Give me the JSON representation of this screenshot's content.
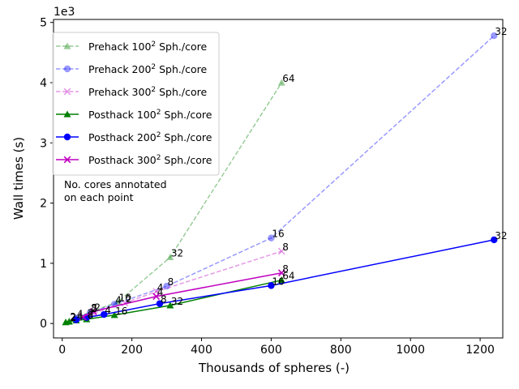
{
  "chart_data": {
    "type": "line",
    "xlabel": "Thousands of spheres (-)",
    "ylabel": "Wall times (s)",
    "y_offset_label": "1e3",
    "xlim": [
      -25,
      1265
    ],
    "ylim": [
      -0.24,
      5.05
    ],
    "x_ticks": [
      0,
      200,
      400,
      600,
      800,
      1000,
      1200
    ],
    "x_tick_labels": [
      "0",
      "200",
      "400",
      "600",
      "800",
      "1000",
      "1200"
    ],
    "y_ticks": [
      0,
      1,
      2,
      3,
      4,
      5
    ],
    "y_tick_labels": [
      "0",
      "1",
      "2",
      "3",
      "4",
      "5"
    ],
    "grid": false,
    "legend_position": "upper-left",
    "note_lines": [
      "No. cores annotated",
      "on each point"
    ],
    "series": [
      {
        "name": "Prehack 100² Sph./core",
        "name_base": "Prehack 100",
        "name_sup": "2",
        "name_tail": " Sph./core",
        "color": "#008000",
        "marker": "triangle",
        "dashed": true,
        "alpha": 0.4,
        "x": [
          10,
          20,
          40,
          80,
          160,
          310,
          630
        ],
        "y": [
          0.02,
          0.04,
          0.09,
          0.19,
          0.36,
          1.1,
          4.0
        ],
        "labels": [
          "",
          "2",
          "4",
          "8",
          "16",
          "32",
          "64"
        ]
      },
      {
        "name": "Prehack 200² Sph./core",
        "name_base": "Prehack 200",
        "name_sup": "2",
        "name_tail": " Sph./core",
        "color": "#0000ff",
        "marker": "circle",
        "dashed": true,
        "alpha": 0.4,
        "x": [
          40,
          80,
          150,
          300,
          600,
          1240
        ],
        "y": [
          0.09,
          0.18,
          0.32,
          0.62,
          1.42,
          4.78
        ],
        "labels": [
          "",
          "2",
          "4",
          "8",
          "16",
          "32"
        ]
      },
      {
        "name": "Prehack 300² Sph./core",
        "name_base": "Prehack 300",
        "name_sup": "2",
        "name_tail": " Sph./core",
        "color": "#bf00bf",
        "marker": "x",
        "dashed": true,
        "alpha": 0.4,
        "x": [
          90,
          180,
          270,
          630
        ],
        "y": [
          0.17,
          0.34,
          0.53,
          1.2
        ],
        "labels": [
          "",
          "2",
          "4",
          "8"
        ]
      },
      {
        "name": "Posthack 100² Sph./core",
        "name_base": "Posthack 100",
        "name_sup": "2",
        "name_tail": " Sph./core",
        "color": "#008000",
        "marker": "triangle",
        "dashed": false,
        "alpha": 1,
        "x": [
          10,
          20,
          40,
          70,
          150,
          310,
          630
        ],
        "y": [
          0.02,
          0.03,
          0.05,
          0.07,
          0.14,
          0.3,
          0.72
        ],
        "labels": [
          "",
          "2",
          "4",
          "8",
          "16",
          "32",
          "64"
        ]
      },
      {
        "name": "Posthack 200² Sph./core",
        "name_base": "Posthack 200",
        "name_sup": "2",
        "name_tail": " Sph./core",
        "color": "#0000ff",
        "marker": "circle",
        "dashed": false,
        "alpha": 1,
        "x": [
          40,
          70,
          120,
          280,
          600,
          1240
        ],
        "y": [
          0.06,
          0.1,
          0.15,
          0.33,
          0.63,
          1.39
        ],
        "labels": [
          "",
          "2",
          "4",
          "8",
          "16",
          "32"
        ]
      },
      {
        "name": "Posthack 300² Sph./core",
        "name_base": "Posthack 300",
        "name_sup": "2",
        "name_tail": " Sph./core",
        "color": "#bf00bf",
        "marker": "x",
        "dashed": false,
        "alpha": 1,
        "x": [
          60,
          90,
          270,
          630
        ],
        "y": [
          0.11,
          0.2,
          0.45,
          0.84
        ],
        "labels": [
          "",
          "2",
          "4",
          "8"
        ]
      }
    ]
  }
}
